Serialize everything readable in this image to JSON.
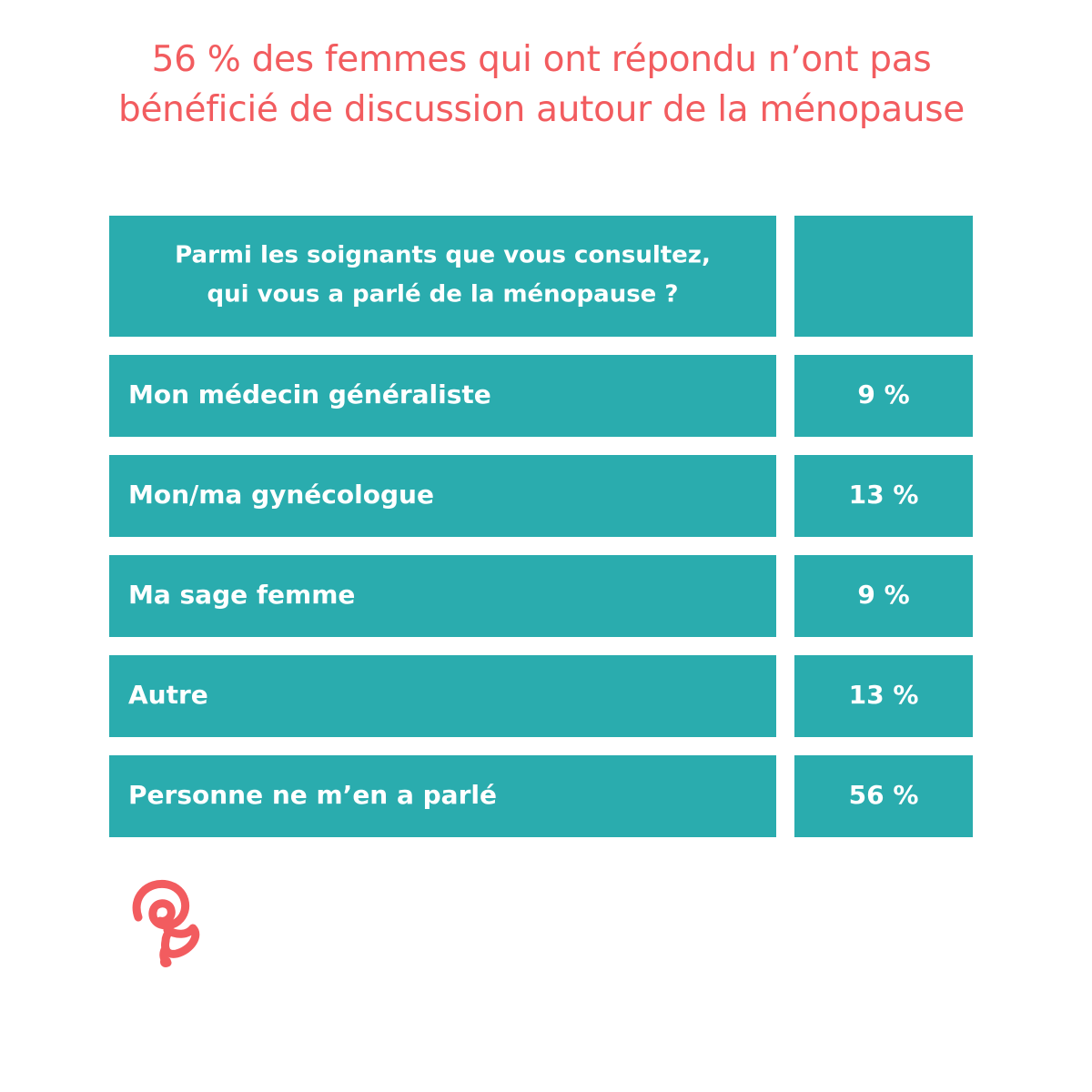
{
  "colors": {
    "title": "#f25c5f",
    "cell": "#2aacae",
    "cell_text": "#ffffff",
    "logo": "#f25c5f"
  },
  "title": "56 % des femmes qui ont répondu n’ont pas bénéficié de discussion autour de la ménopause",
  "logo": {
    "icon": "spiral-logo-icon"
  },
  "chart_data": {
    "type": "table",
    "columns": [
      "Parmi les soignants que vous consultez, qui vous a parlé de la ménopause ?",
      ""
    ],
    "question_lines": [
      "Parmi les soignants que vous consultez,",
      "qui vous a parlé de la ménopause ?"
    ],
    "rows": [
      {
        "label": "Mon médecin généraliste",
        "value": 9,
        "value_label": "9 %"
      },
      {
        "label": "Mon/ma gynécologue",
        "value": 13,
        "value_label": "13 %"
      },
      {
        "label": "Ma sage femme",
        "value": 9,
        "value_label": "9 %"
      },
      {
        "label": "Autre",
        "value": 13,
        "value_label": "13 %"
      },
      {
        "label": "Personne ne m’en a parlé",
        "value": 56,
        "value_label": "56 %"
      }
    ],
    "unit": "%"
  }
}
